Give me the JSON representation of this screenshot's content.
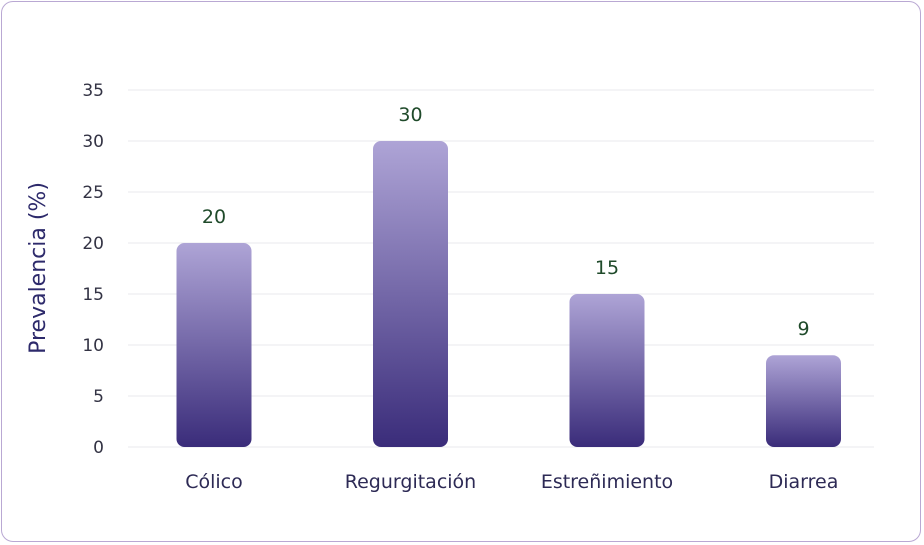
{
  "chart_data": {
    "type": "bar",
    "categories": [
      "Cólico",
      "Regurgitación",
      "Estreñimiento",
      "Diarrea"
    ],
    "values": [
      20,
      30,
      15,
      9
    ],
    "data_labels": [
      "20",
      "30",
      "15",
      "9"
    ],
    "title": "",
    "xlabel": "",
    "ylabel": "Prevalencia (%)",
    "ylim": [
      0,
      35
    ],
    "yticks": [
      0,
      5,
      10,
      15,
      20,
      25,
      30,
      35
    ],
    "grid": true,
    "legend": "none",
    "colors": {
      "bar_top": "#aea4d6",
      "bar_bottom": "#3a2c7a",
      "value_label": "#1f4a2a",
      "border": "#b9a8d3"
    }
  }
}
